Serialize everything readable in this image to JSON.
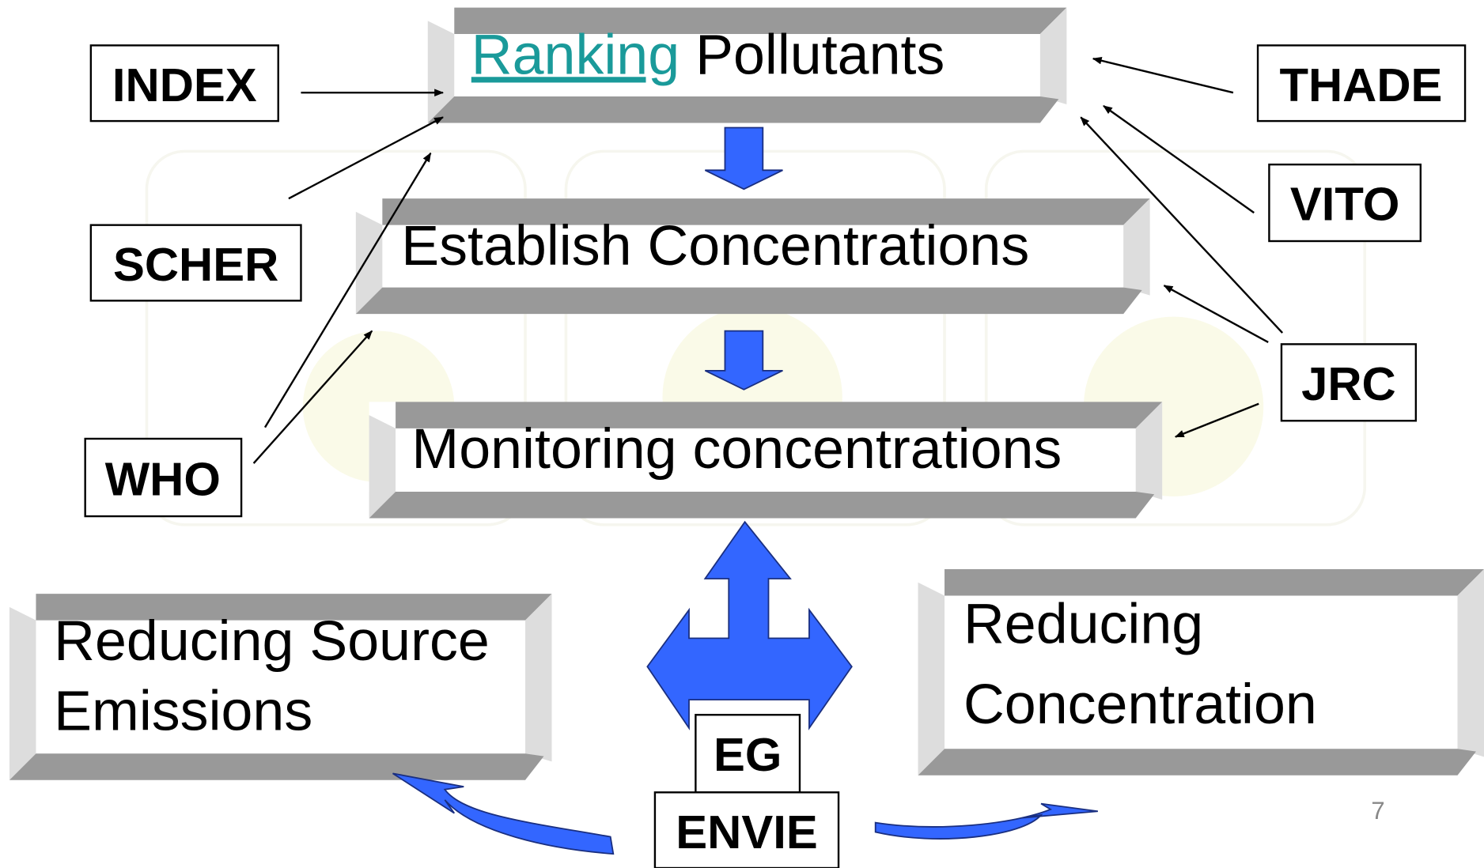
{
  "top_step": {
    "link": "Ranking",
    "text": "Pollutants"
  },
  "steps": [
    "Establish Concentrations",
    "Monitoring concentrations"
  ],
  "outcomes": [
    [
      "Reducing Source",
      "Emissions"
    ],
    [
      "Reducing",
      "Concentration"
    ]
  ],
  "agencies": [
    "INDEX",
    "SCHER",
    "WHO",
    "THADE",
    "VITO",
    "JRC"
  ],
  "groups": [
    "EG",
    "ENVIE"
  ],
  "page_number": "7"
}
